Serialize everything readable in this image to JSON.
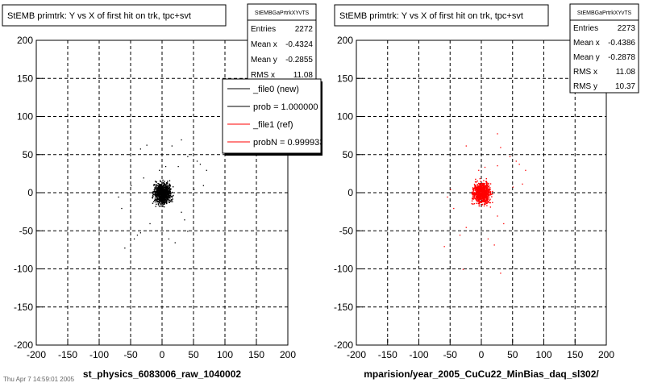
{
  "chart_data": [
    {
      "type": "scatter",
      "title": "StEMB primtrk: Y vs X of first hit on trk, tpc+svt",
      "xlabel": "st_physics_6083006_raw_1040002",
      "ylabel": "",
      "xlim": [
        -200,
        200
      ],
      "ylim": [
        -200,
        200
      ],
      "xticks": [
        -200,
        -150,
        -100,
        -50,
        0,
        50,
        100,
        150,
        200
      ],
      "yticks": [
        -200,
        -150,
        -100,
        -50,
        0,
        50,
        100,
        150,
        200
      ],
      "grid": true,
      "marker_color": "#000000",
      "stats": {
        "name": "StEMBGaPrtrkXYvTS",
        "entries_label": "Entries",
        "entries": "2272",
        "mean_x_label": "Mean x",
        "mean_x": "-0.4324",
        "mean_y_label": "Mean y",
        "mean_y": "-0.2855",
        "rms_x_label": "RMS x",
        "rms_x": "11.08"
      },
      "legend": {
        "placement": "top-right",
        "entries": [
          {
            "label": "_file0 (new)",
            "color": "#000000"
          },
          {
            "label": "prob = 1.000000",
            "color": "#000000"
          },
          {
            "label": "_file1 (ref)",
            "color": "#ff0000"
          },
          {
            "label": "probN = 0.999933",
            "color": "#ff0000"
          }
        ]
      },
      "core": {
        "x": [
          -20,
          20
        ],
        "y": [
          -20,
          20
        ]
      },
      "points": [
        {
          "x": -35,
          "y": 58
        },
        {
          "x": -25,
          "y": 63
        },
        {
          "x": 30,
          "y": 70
        },
        {
          "x": 15,
          "y": 62
        },
        {
          "x": 55,
          "y": 42
        },
        {
          "x": 60,
          "y": 38
        },
        {
          "x": 40,
          "y": 48
        },
        {
          "x": 70,
          "y": 30
        },
        {
          "x": -70,
          "y": -5
        },
        {
          "x": -65,
          "y": -20
        },
        {
          "x": -60,
          "y": -72
        },
        {
          "x": -45,
          "y": -60
        },
        {
          "x": -50,
          "y": 10
        },
        {
          "x": -35,
          "y": -52
        },
        {
          "x": -40,
          "y": -55
        },
        {
          "x": 30,
          "y": -25
        },
        {
          "x": 35,
          "y": -35
        },
        {
          "x": 40,
          "y": -50
        },
        {
          "x": 10,
          "y": -60
        },
        {
          "x": 20,
          "y": -65
        },
        {
          "x": 50,
          "y": 5
        },
        {
          "x": 65,
          "y": 10
        },
        {
          "x": 25,
          "y": 35
        },
        {
          "x": -20,
          "y": -40
        },
        {
          "x": 0,
          "y": -5
        },
        {
          "x": -5,
          "y": 30
        },
        {
          "x": 5,
          "y": 35
        },
        {
          "x": -30,
          "y": 20
        }
      ]
    },
    {
      "type": "scatter",
      "title": "StEMB primtrk: Y vs X of first hit on trk, tpc+svt",
      "xlabel": "mparision/year_2005_CuCu22_MinBias_daq_sl302/",
      "ylabel": "",
      "xlim": [
        -200,
        200
      ],
      "ylim": [
        -200,
        200
      ],
      "xticks": [
        -200,
        -150,
        -100,
        -50,
        0,
        50,
        100,
        150,
        200
      ],
      "yticks": [
        -200,
        -150,
        -100,
        -50,
        0,
        50,
        100,
        150,
        200
      ],
      "grid": true,
      "marker_color": "#ff0000",
      "stats": {
        "name": "StEMBGaPrtrkXYvTS",
        "entries_label": "Entries",
        "entries": "2273",
        "mean_x_label": "Mean x",
        "mean_x": "-0.4386",
        "mean_y_label": "Mean y",
        "mean_y": "-0.2878",
        "rms_x_label": "RMS x",
        "rms_x": "11.08",
        "rms_y_label": "RMS y",
        "rms_y": "10.37"
      },
      "core": {
        "x": [
          -20,
          20
        ],
        "y": [
          -20,
          20
        ]
      },
      "points": [
        {
          "x": -25,
          "y": 62
        },
        {
          "x": 25,
          "y": 78
        },
        {
          "x": 30,
          "y": 60
        },
        {
          "x": 55,
          "y": 42
        },
        {
          "x": 60,
          "y": 38
        },
        {
          "x": 45,
          "y": 48
        },
        {
          "x": 70,
          "y": 30
        },
        {
          "x": -50,
          "y": 5
        },
        {
          "x": -55,
          "y": -5
        },
        {
          "x": -45,
          "y": -20
        },
        {
          "x": -60,
          "y": -70
        },
        {
          "x": -35,
          "y": -55
        },
        {
          "x": -25,
          "y": -45
        },
        {
          "x": 25,
          "y": -30
        },
        {
          "x": 35,
          "y": -40
        },
        {
          "x": 10,
          "y": -60
        },
        {
          "x": 30,
          "y": -105
        },
        {
          "x": -30,
          "y": -100
        },
        {
          "x": 20,
          "y": -68
        },
        {
          "x": 50,
          "y": 8
        },
        {
          "x": 65,
          "y": 12
        },
        {
          "x": 25,
          "y": 36
        },
        {
          "x": -5,
          "y": 30
        },
        {
          "x": 5,
          "y": 34
        }
      ]
    }
  ],
  "footer": "Thu Apr 7 14:59:01 2005"
}
